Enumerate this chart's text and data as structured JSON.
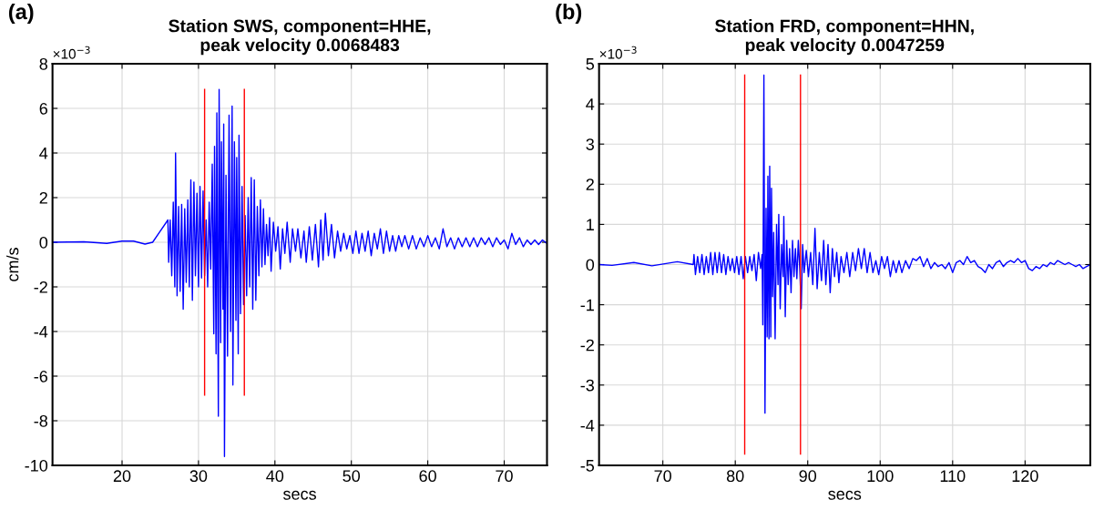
{
  "chart_data": [
    {
      "type": "line",
      "title": "Station SWS, component=HHE,\npeak velocity 0.0068483",
      "xlabel": "secs",
      "ylabel": "cm/s",
      "annotations": [
        "(a)",
        "×10$^{−3}$"
      ],
      "grid": true,
      "xlim": [
        10.9,
        75.6
      ],
      "ylim": [
        -10,
        8
      ],
      "xticks": [
        20,
        30,
        40,
        50,
        60,
        70
      ],
      "yticks": [
        -10,
        -8,
        -6,
        -4,
        -2,
        0,
        2,
        4,
        6,
        8
      ],
      "series": [
        {
          "color": "#0000ff",
          "x": [
            10.9,
            15,
            18,
            20,
            21.5,
            23,
            24,
            26.0,
            26.1,
            26.3,
            26.5,
            26.7,
            26.9,
            27.0,
            27.2,
            27.4,
            27.6,
            27.8,
            28.0,
            28.2,
            28.4,
            28.6,
            28.8,
            29.0,
            29.2,
            29.4,
            29.6,
            29.8,
            30.0,
            30.2,
            30.4,
            30.6,
            30.8,
            31.0,
            31.2,
            31.4,
            31.6,
            31.8,
            32.0,
            32.1,
            32.3,
            32.4,
            32.6,
            32.7,
            32.9,
            33.0,
            33.2,
            33.3,
            33.4,
            33.6,
            33.8,
            34.0,
            34.2,
            34.4,
            34.5,
            34.7,
            34.9,
            35.0,
            35.2,
            35.3,
            35.5,
            35.7,
            35.9,
            36.1,
            36.3,
            36.5,
            36.7,
            36.9,
            37.1,
            37.3,
            37.5,
            37.7,
            37.9,
            38.1,
            38.3,
            38.5,
            38.7,
            38.9,
            39.1,
            39.3,
            39.5,
            39.8,
            40.1,
            40.4,
            40.7,
            41.0,
            41.3,
            41.6,
            42.0,
            42.3,
            42.7,
            43.0,
            43.4,
            43.8,
            44.1,
            44.5,
            44.9,
            45.3,
            45.7,
            46.0,
            46.3,
            46.6,
            47.0,
            47.4,
            47.8,
            48.2,
            48.6,
            49.0,
            49.4,
            49.8,
            50.2,
            50.6,
            51.0,
            51.4,
            51.8,
            52.2,
            52.6,
            53.0,
            53.4,
            53.8,
            54.2,
            54.6,
            55.0,
            55.4,
            55.8,
            56.2,
            56.6,
            57.0,
            57.5,
            58.0,
            58.5,
            59.0,
            59.5,
            60.0,
            60.5,
            61.0,
            61.5,
            62.0,
            62.5,
            63.0,
            63.5,
            64.0,
            64.5,
            65.0,
            65.5,
            66.0,
            66.5,
            67.0,
            67.5,
            68.0,
            68.5,
            69.0,
            69.5,
            70.0,
            70.5,
            71.0,
            71.5,
            72.0,
            72.5,
            73.0,
            73.5,
            74.0,
            74.5,
            75.0,
            75.6
          ],
          "values": [
            0,
            0.02,
            -0.05,
            0.05,
            0.05,
            -0.08,
            0,
            1.0,
            -0.9,
            1.0,
            -1.5,
            1.8,
            -2.0,
            4.0,
            -2.4,
            1.6,
            -2.2,
            1.7,
            -3.0,
            1.5,
            -1.8,
            1.9,
            -2.0,
            2.8,
            -2.6,
            2.7,
            -1.5,
            2.2,
            -2.0,
            2.5,
            -1.6,
            2.3,
            -1.5,
            1.0,
            -2.0,
            1.8,
            -1.2,
            3.5,
            -4.1,
            4.3,
            -5.0,
            5.8,
            -7.8,
            6.85,
            -4.5,
            4.5,
            -3.0,
            5.3,
            -9.6,
            3.0,
            -5.1,
            5.7,
            -4.0,
            6.1,
            -6.4,
            4.5,
            -3.5,
            3.8,
            -5.0,
            4.8,
            -3.2,
            2.5,
            -2.8,
            1.2,
            -2.4,
            2.0,
            -2.0,
            2.9,
            -3.0,
            2.8,
            -2.6,
            1.6,
            -1.5,
            1.9,
            -1.1,
            1.5,
            -1.0,
            0.8,
            -0.6,
            1.1,
            -1.3,
            0.9,
            -0.4,
            0.7,
            -1.2,
            0.6,
            -0.5,
            0.9,
            -0.9,
            0.6,
            -0.4,
            0.6,
            -0.7,
            0.5,
            -0.9,
            0.7,
            -0.8,
            0.8,
            -1.1,
            1.0,
            -0.8,
            1.3,
            -0.6,
            0.8,
            -0.7,
            0.5,
            -0.4,
            0.4,
            -0.3,
            0.3,
            -0.5,
            0.5,
            -0.5,
            0.4,
            -0.4,
            0.5,
            -0.6,
            0.4,
            -0.3,
            0.6,
            -0.5,
            0.5,
            -0.4,
            0.3,
            -0.4,
            0.3,
            -0.2,
            0.3,
            -0.3,
            0.3,
            -0.3,
            0.2,
            -0.2,
            0.3,
            -0.2,
            0.2,
            -0.3,
            0.6,
            -0.2,
            0.2,
            -0.3,
            0.2,
            -0.2,
            0.2,
            -0.2,
            0.2,
            -0.2,
            0.2,
            -0.1,
            0.2,
            -0.2,
            0.2,
            -0.1,
            0.1,
            -0.3,
            0.4,
            -0.1,
            0.2,
            -0.2,
            0.1,
            -0.1,
            0.1,
            -0.1,
            0.1,
            -0.05
          ]
        },
        {
          "color": "#ff0000",
          "x": [
            30.8,
            30.8
          ],
          "values": [
            -6.85,
            6.85
          ]
        },
        {
          "color": "#ff0000",
          "x": [
            36.0,
            36.0
          ],
          "values": [
            -6.85,
            6.85
          ]
        }
      ]
    },
    {
      "type": "line",
      "title": "Station FRD, component=HHN,\npeak velocity 0.0047259",
      "xlabel": "secs",
      "annotations": [
        "(b)",
        "×10$^{−3}$"
      ],
      "grid": true,
      "xlim": [
        61.2,
        129
      ],
      "ylim": [
        -5,
        5
      ],
      "xticks": [
        70,
        80,
        90,
        100,
        110,
        120
      ],
      "yticks": [
        -5,
        -4,
        -3,
        -2,
        -1,
        0,
        1,
        2,
        3,
        4,
        5
      ],
      "series": [
        {
          "color": "#0000ff",
          "x": [
            61.2,
            63,
            66,
            68.5,
            72,
            74.2,
            74.3,
            74.5,
            74.8,
            75.1,
            75.4,
            75.7,
            76,
            76.3,
            76.6,
            76.9,
            77.2,
            77.5,
            77.8,
            78.1,
            78.4,
            78.7,
            79,
            79.3,
            79.6,
            79.9,
            80.2,
            80.5,
            80.8,
            81.1,
            81.4,
            81.7,
            82,
            82.3,
            82.6,
            82.9,
            83.2,
            83.5,
            83.7,
            83.8,
            83.95,
            84.1,
            84.25,
            84.4,
            84.5,
            84.65,
            84.75,
            84.9,
            85.0,
            85.15,
            85.3,
            85.5,
            85.7,
            85.9,
            86.0,
            86.2,
            86.4,
            86.6,
            86.7,
            86.9,
            87.1,
            87.3,
            87.5,
            87.7,
            87.9,
            88.1,
            88.3,
            88.5,
            88.7,
            88.9,
            89.1,
            89.3,
            89.5,
            89.8,
            90.1,
            90.4,
            90.7,
            91.0,
            91.3,
            91.6,
            91.9,
            92.2,
            92.5,
            92.8,
            93.1,
            93.4,
            93.7,
            94.0,
            94.3,
            94.6,
            95.0,
            95.4,
            95.8,
            96.2,
            96.6,
            97.0,
            97.4,
            97.8,
            98.2,
            98.6,
            99.0,
            99.4,
            99.8,
            100.2,
            100.6,
            101.0,
            101.4,
            101.8,
            102.2,
            102.6,
            103.0,
            103.5,
            104.0,
            104.5,
            105.0,
            105.5,
            106.0,
            106.5,
            107.0,
            107.5,
            108.0,
            108.5,
            109.0,
            109.5,
            110.0,
            110.5,
            111.0,
            111.5,
            112.0,
            112.5,
            113.0,
            113.5,
            114.0,
            114.5,
            115.0,
            115.5,
            116.0,
            116.5,
            117.0,
            117.5,
            118.0,
            118.5,
            119.0,
            119.5,
            120.0,
            120.5,
            121.0,
            121.5,
            122.0,
            122.5,
            123.0,
            123.5,
            124.0,
            124.5,
            125.0,
            125.5,
            126.0,
            126.5,
            127.0,
            127.5,
            128.0,
            128.5,
            129.0
          ],
          "values": [
            0,
            -0.02,
            0.05,
            -0.03,
            0.07,
            0.0,
            0.25,
            -0.25,
            0.2,
            -0.2,
            0.25,
            -0.25,
            0.2,
            -0.2,
            0.3,
            -0.25,
            0.3,
            -0.2,
            0.3,
            -0.2,
            0.25,
            -0.25,
            0.2,
            -0.15,
            0.15,
            -0.2,
            0.2,
            -0.25,
            0.2,
            -0.35,
            0.2,
            -0.2,
            0.2,
            -0.15,
            0.25,
            -0.4,
            0.3,
            -0.1,
            0.25,
            -1.5,
            4.72,
            -3.7,
            1.4,
            -1.8,
            2.2,
            -1.85,
            2.45,
            -1.8,
            1.9,
            -0.8,
            0.8,
            -1.85,
            1.0,
            -0.5,
            1.25,
            -1.1,
            0.5,
            -0.3,
            1.2,
            -1.3,
            0.6,
            -0.5,
            0.4,
            -0.7,
            0.6,
            -0.3,
            0.4,
            -0.35,
            0.6,
            -0.1,
            -1.1,
            0.5,
            -0.2,
            0.35,
            -0.3,
            0.3,
            -0.5,
            0.9,
            -0.6,
            0.3,
            -0.4,
            0.6,
            -0.5,
            0.5,
            -0.7,
            0.4,
            -0.3,
            0.3,
            -0.45,
            0.2,
            -0.2,
            0.3,
            -0.3,
            0.3,
            -0.15,
            0.4,
            -0.1,
            0.4,
            -0.2,
            0.3,
            -0.2,
            0.1,
            -0.25,
            0.2,
            -0.1,
            0.2,
            -0.3,
            0.1,
            -0.2,
            0.1,
            -0.2,
            0.1,
            -0.1,
            0.15,
            0.1,
            0.2,
            -0.05,
            0.15,
            -0.1,
            0.05,
            -0.05,
            0.0,
            -0.1,
            0.05,
            -0.2,
            0.05,
            0.1,
            0.0,
            0.2,
            0.05,
            0.1,
            -0.05,
            -0.1,
            -0.2,
            0.0,
            -0.1,
            0.05,
            0.1,
            -0.05,
            0.05,
            0.1,
            0.05,
            0.15,
            0.05,
            0.1,
            -0.1,
            -0.15,
            -0.05,
            -0.1,
            0.0,
            -0.05,
            0.05,
            0.0,
            0.1,
            0.05,
            0.0,
            0.05,
            0.0,
            -0.05,
            0.0,
            -0.1,
            -0.05,
            0.0
          ]
        },
        {
          "color": "#ff0000",
          "x": [
            81.3,
            81.3
          ],
          "values": [
            -4.72,
            4.72
          ]
        },
        {
          "color": "#ff0000",
          "x": [
            89.0,
            89.0
          ],
          "values": [
            -4.72,
            4.72
          ]
        }
      ]
    }
  ]
}
